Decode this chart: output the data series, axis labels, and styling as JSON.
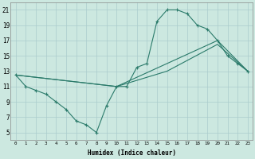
{
  "xlabel": "Humidex (Indice chaleur)",
  "bg_color": "#cce8e0",
  "grid_color": "#aacccc",
  "line_color": "#2a7a6a",
  "xlim": [
    -0.5,
    23.5
  ],
  "ylim": [
    4,
    22
  ],
  "xticks": [
    0,
    1,
    2,
    3,
    4,
    5,
    6,
    7,
    8,
    9,
    10,
    11,
    12,
    13,
    14,
    15,
    16,
    17,
    18,
    19,
    20,
    21,
    22,
    23
  ],
  "yticks": [
    5,
    7,
    9,
    11,
    13,
    15,
    17,
    19,
    21
  ],
  "line1_x": [
    0,
    1,
    2,
    3,
    4,
    5,
    6,
    7,
    8,
    9,
    10,
    11,
    12,
    13,
    14,
    15,
    16,
    17,
    18,
    19,
    20,
    21,
    22,
    23
  ],
  "line1_y": [
    12.5,
    11.0,
    10.5,
    10.0,
    9.0,
    8.0,
    6.5,
    6.0,
    5.0,
    8.5,
    11.0,
    11.0,
    13.5,
    14.0,
    19.5,
    21.0,
    21.0,
    20.5,
    19.0,
    18.5,
    17.0,
    15.0,
    14.0,
    13.0
  ],
  "line2_x": [
    0,
    10,
    20,
    23
  ],
  "line2_y": [
    12.5,
    11.0,
    17.0,
    13.0
  ],
  "line3_x": [
    0,
    10,
    15,
    20,
    23
  ],
  "line3_y": [
    12.5,
    11.0,
    13.0,
    16.5,
    13.0
  ]
}
